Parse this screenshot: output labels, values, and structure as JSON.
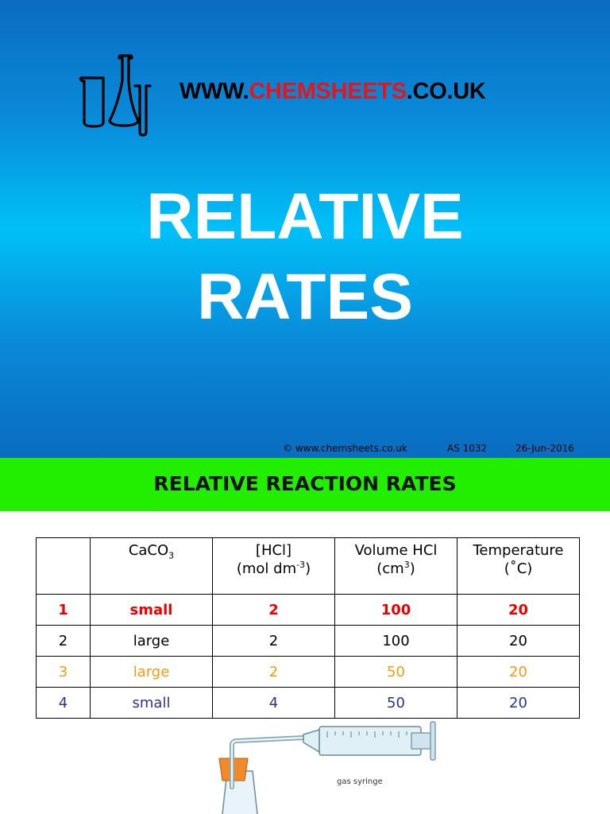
{
  "slide1": {
    "site": {
      "prefix": "WWW.",
      "brand": "CHEMSHEETS",
      "suffix": ".CO.UK"
    },
    "title_line1": "RELATIVE",
    "title_line2": "RATES",
    "footer": {
      "copyright": "© www.chemsheets.co.uk",
      "code": "AS  1032",
      "date": "26-Jun-2016"
    },
    "logo_icon": "glassware-icon"
  },
  "slide2": {
    "title": "RELATIVE REACTION RATES",
    "table": {
      "headers": {
        "caco3_main": "CaCO",
        "caco3_sub": "3",
        "hcl_line1": "[HCl]",
        "hcl_line2_pre": "(mol dm",
        "hcl_line2_sup": "-3",
        "hcl_line2_post": ")",
        "vol_line1": "Volume HCl",
        "vol_line2_pre": "(cm",
        "vol_line2_sup": "3",
        "vol_line2_post": ")",
        "temp_line1": "Temperature",
        "temp_line2": "(˚C)"
      },
      "rows": [
        {
          "num": "1",
          "caco3": "small",
          "hcl": "2",
          "volume": "100",
          "temp": "20",
          "color": "#ee0000"
        },
        {
          "num": "2",
          "caco3": "large",
          "hcl": "2",
          "volume": "100",
          "temp": "20",
          "color": "#000000"
        },
        {
          "num": "3",
          "caco3": "large",
          "hcl": "2",
          "volume": "50",
          "temp": "20",
          "color": "#f59a12"
        },
        {
          "num": "4",
          "caco3": "small",
          "hcl": "4",
          "volume": "50",
          "temp": "20",
          "color": "#2e3192"
        }
      ]
    },
    "apparatus_label": "gas syringe"
  }
}
